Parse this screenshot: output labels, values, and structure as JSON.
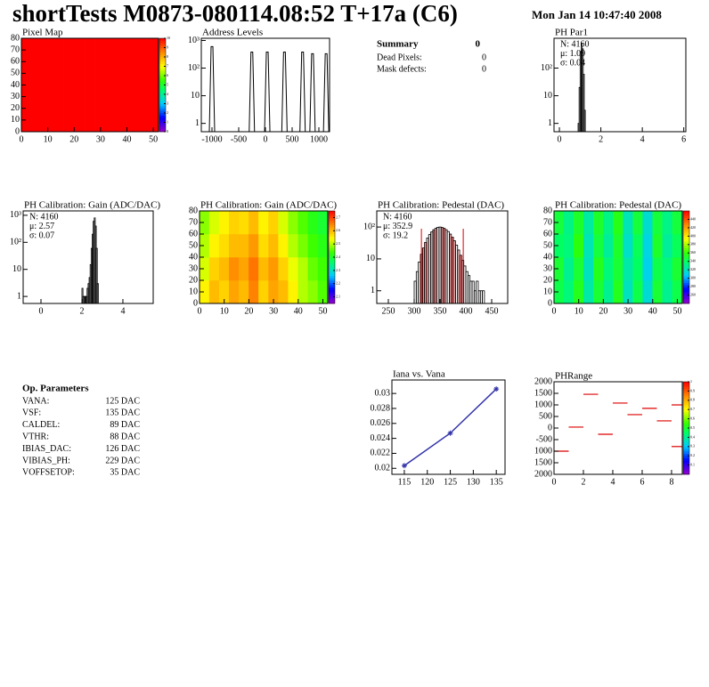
{
  "header": {
    "title": "shortTests M0873-080114.08:52 T+17a (C6)",
    "date": "Mon Jan 14 10:47:40 2008"
  },
  "summary": {
    "title": "Summary",
    "total": 0,
    "rows": [
      {
        "label": "Dead Pixels:",
        "value": 0
      },
      {
        "label": "Mask defects:",
        "value": 0
      }
    ]
  },
  "op_parameters": {
    "title": "Op. Parameters",
    "rows": [
      {
        "name": "VANA:",
        "value": "125 DAC"
      },
      {
        "name": "VSF:",
        "value": "135 DAC"
      },
      {
        "name": "CALDEL:",
        "value": "89 DAC"
      },
      {
        "name": "VTHR:",
        "value": "88 DAC"
      },
      {
        "name": "IBIAS_DAC:",
        "value": "126 DAC"
      },
      {
        "name": "VIBIAS_PH:",
        "value": "229 DAC"
      },
      {
        "name": "VOFFSETOP:",
        "value": "35 DAC"
      }
    ]
  },
  "chart_data": [
    {
      "type": "heatmap",
      "title": "Pixel Map",
      "xlim": [
        0,
        52
      ],
      "ylim": [
        0,
        80
      ],
      "xticks": [
        0,
        10,
        20,
        30,
        40,
        50
      ],
      "yticks": [
        0,
        10,
        20,
        30,
        40,
        50,
        60,
        70,
        80
      ],
      "zlim": [
        0,
        10
      ],
      "zticks": [
        0,
        1,
        2,
        3,
        4,
        5,
        6,
        7,
        8,
        9,
        10
      ],
      "values": [
        [
          10,
          10,
          10,
          10,
          10,
          10,
          10,
          10,
          10,
          10,
          10,
          10,
          10
        ],
        [
          10,
          10,
          10,
          10,
          10,
          10,
          10,
          10,
          10,
          10,
          10,
          10,
          10
        ],
        [
          10,
          10,
          10,
          10,
          10,
          10,
          10,
          10,
          10,
          10,
          10,
          10,
          10
        ],
        [
          10,
          10,
          10,
          10,
          10,
          10,
          10,
          10,
          10,
          10,
          10,
          10,
          10
        ]
      ]
    },
    {
      "type": "spikes",
      "title": "Address Levels",
      "log_y": true,
      "xlim": [
        -1200,
        1200
      ],
      "ylim": [
        0.5,
        1200
      ],
      "xticks": [
        -1000,
        -500,
        0,
        500,
        1000
      ],
      "yticks": [
        1,
        10,
        {
          "value": 100,
          "label": "10²"
        },
        {
          "value": 1000,
          "label": "10³"
        }
      ],
      "x": [
        -1000,
        -254,
        34,
        356,
        695,
        881,
        1136
      ],
      "values": [
        600,
        380,
        380,
        380,
        380,
        330,
        330
      ],
      "color": "#000000"
    },
    {
      "type": "histogram",
      "title": "PH Par1",
      "log_y": true,
      "xlim": [
        -0.26,
        6.1
      ],
      "ylim": [
        0.5,
        1200
      ],
      "xticks": [
        0,
        2,
        4,
        6
      ],
      "yticks": [
        1,
        10,
        {
          "value": 100,
          "label": "10²"
        }
      ],
      "stats": [
        {
          "text": "N: 4160",
          "color": "#000000"
        },
        {
          "text": "μ: 1.09",
          "color": "#000000"
        },
        {
          "text": "σ: 0.04",
          "color": "#000000"
        }
      ],
      "bins": [
        0.9,
        0.95,
        1.0,
        1.05,
        1.1,
        1.15,
        1.2,
        1.25
      ],
      "values": [
        1,
        20,
        400,
        800,
        500,
        60,
        3
      ],
      "color": "#000000"
    },
    {
      "type": "histogram",
      "title": "PH Calibration: Gain (ADC/DAC)",
      "log_y": true,
      "xlim": [
        -0.87,
        5.48
      ],
      "ylim": [
        0.55,
        1450
      ],
      "xticks": [
        0,
        2,
        4
      ],
      "yticks": [
        1,
        10,
        {
          "value": 100,
          "label": "10²"
        },
        {
          "value": 1000,
          "label": "10³"
        }
      ],
      "stats": [
        {
          "text": "N: 4160",
          "color": "#000000"
        },
        {
          "text": "μ: 2.57",
          "color": "#000000"
        },
        {
          "text": "σ: 0.07",
          "color": "#000000"
        }
      ],
      "bins": [
        2.0,
        2.05,
        2.1,
        2.15,
        2.2,
        2.25,
        2.3,
        2.35,
        2.4,
        2.45,
        2.5,
        2.55,
        2.6,
        2.65,
        2.7,
        2.75,
        2.8
      ],
      "values": [
        2,
        1,
        1,
        1,
        1,
        2,
        3,
        5,
        15,
        60,
        200,
        600,
        800,
        400,
        60,
        3
      ],
      "color": "#000000"
    },
    {
      "type": "heatmap",
      "title": "PH Calibration: Gain (ADC/DAC)",
      "xlim": [
        0,
        52
      ],
      "ylim": [
        0,
        80
      ],
      "xticks": [
        0,
        10,
        20,
        30,
        40,
        50
      ],
      "yticks": [
        0,
        10,
        20,
        30,
        40,
        50,
        60,
        70,
        80
      ],
      "zlim": [
        2.05,
        2.75
      ],
      "zticks": [
        2.1,
        2.2,
        2.3,
        2.4,
        2.5,
        2.6,
        2.7
      ],
      "values": [
        [
          2.55,
          2.6,
          2.58,
          2.62,
          2.6,
          2.65,
          2.58,
          2.62,
          2.6,
          2.55,
          2.5,
          2.48,
          2.45
        ],
        [
          2.52,
          2.58,
          2.6,
          2.64,
          2.62,
          2.66,
          2.6,
          2.63,
          2.58,
          2.53,
          2.5,
          2.46,
          2.44
        ],
        [
          2.5,
          2.55,
          2.57,
          2.6,
          2.6,
          2.63,
          2.57,
          2.6,
          2.55,
          2.5,
          2.47,
          2.44,
          2.42
        ],
        [
          2.48,
          2.52,
          2.55,
          2.58,
          2.57,
          2.6,
          2.55,
          2.58,
          2.52,
          2.48,
          2.45,
          2.42,
          2.4
        ]
      ]
    },
    {
      "type": "histogram",
      "title": "PH Calibration: Pedestal (DAC)",
      "log_y": true,
      "xlim": [
        227.6,
        481
      ],
      "ylim": [
        0.4,
        320
      ],
      "xticks": [
        250,
        300,
        350,
        400,
        450
      ],
      "yticks": [
        1,
        10,
        {
          "value": 100,
          "label": "10²"
        }
      ],
      "stats": [
        {
          "text": "N: 4160",
          "color": "#000000"
        },
        {
          "text": "μ: 352.9",
          "color": "#dd0000"
        },
        {
          "text": "σ: 19.2",
          "color": "#dd0000"
        }
      ],
      "markers": [
        314,
        395
      ],
      "marker_color": "#dd0000",
      "bins": [
        300,
        304,
        308,
        312,
        316,
        320,
        324,
        328,
        332,
        336,
        340,
        344,
        348,
        352,
        356,
        360,
        364,
        368,
        372,
        376,
        380,
        384,
        388,
        392,
        396,
        400,
        404,
        408,
        412,
        416,
        420,
        424,
        428,
        432,
        436
      ],
      "values": [
        2,
        4,
        8,
        14,
        22,
        33,
        45,
        58,
        70,
        82,
        91,
        98,
        100,
        97,
        91,
        82,
        72,
        60,
        48,
        37,
        27,
        19,
        13,
        9,
        6,
        4,
        3,
        2,
        2,
        1,
        2,
        1,
        1,
        1
      ],
      "color": "#000000"
    },
    {
      "type": "heatmap",
      "title": "PH Calibration: Pedestal (DAC)",
      "xlim": [
        0,
        52
      ],
      "ylim": [
        0,
        80
      ],
      "xticks": [
        0,
        10,
        20,
        30,
        40,
        50
      ],
      "yticks": [
        0,
        10,
        20,
        30,
        40,
        50,
        60,
        70,
        80
      ],
      "zlim": [
        240,
        460
      ],
      "zticks": [
        260,
        280,
        300,
        320,
        340,
        360,
        380,
        400,
        420,
        440
      ],
      "values": [
        [
          345,
          335,
          355,
          325,
          350,
          330,
          355,
          320,
          345,
          315,
          350,
          330,
          345
        ],
        [
          350,
          330,
          350,
          320,
          355,
          335,
          350,
          325,
          340,
          310,
          345,
          335,
          350
        ],
        [
          340,
          335,
          358,
          322,
          348,
          328,
          352,
          318,
          342,
          312,
          352,
          328,
          342
        ],
        [
          348,
          332,
          352,
          326,
          352,
          332,
          356,
          322,
          348,
          316,
          348,
          332,
          348
        ]
      ]
    },
    {
      "type": "line",
      "title": "Iana vs. Vana",
      "xlim": [
        112.3,
        136.9
      ],
      "ylim": [
        0.0192,
        0.0318
      ],
      "xticks": [
        115,
        120,
        125,
        130,
        135
      ],
      "yticks": [
        0.02,
        0.022,
        0.024,
        0.026,
        0.028,
        0.03
      ],
      "x": [
        115,
        125,
        135
      ],
      "values": [
        0.02036,
        0.0247,
        0.0306
      ],
      "color": "#3333aa"
    },
    {
      "type": "segments",
      "title": "PHRange",
      "xlim": [
        0,
        8.73
      ],
      "ylim": [
        -2000,
        2000
      ],
      "xticks": [
        0,
        2,
        4,
        6,
        8
      ],
      "yticks": [
        {
          "value": -2000,
          "label": "2000"
        },
        {
          "value": -1500,
          "label": "1500"
        },
        {
          "value": -1000,
          "label": "1000"
        },
        -500,
        0,
        500,
        1000,
        1500,
        2000
      ],
      "zlim": [
        0,
        1
      ],
      "zticks": [
        0.1,
        0.2,
        0.3,
        0.4,
        0.5,
        0.6,
        0.7,
        0.8,
        0.9,
        1
      ],
      "x": [
        0.5,
        1.5,
        2.5,
        3.5,
        4.5,
        5.5,
        6.5,
        7.5,
        8.5,
        8.5
      ],
      "values": [
        -1000,
        40,
        1460,
        -270,
        1080,
        580,
        850,
        310,
        1000,
        -800
      ],
      "color": "#dd0000"
    }
  ]
}
